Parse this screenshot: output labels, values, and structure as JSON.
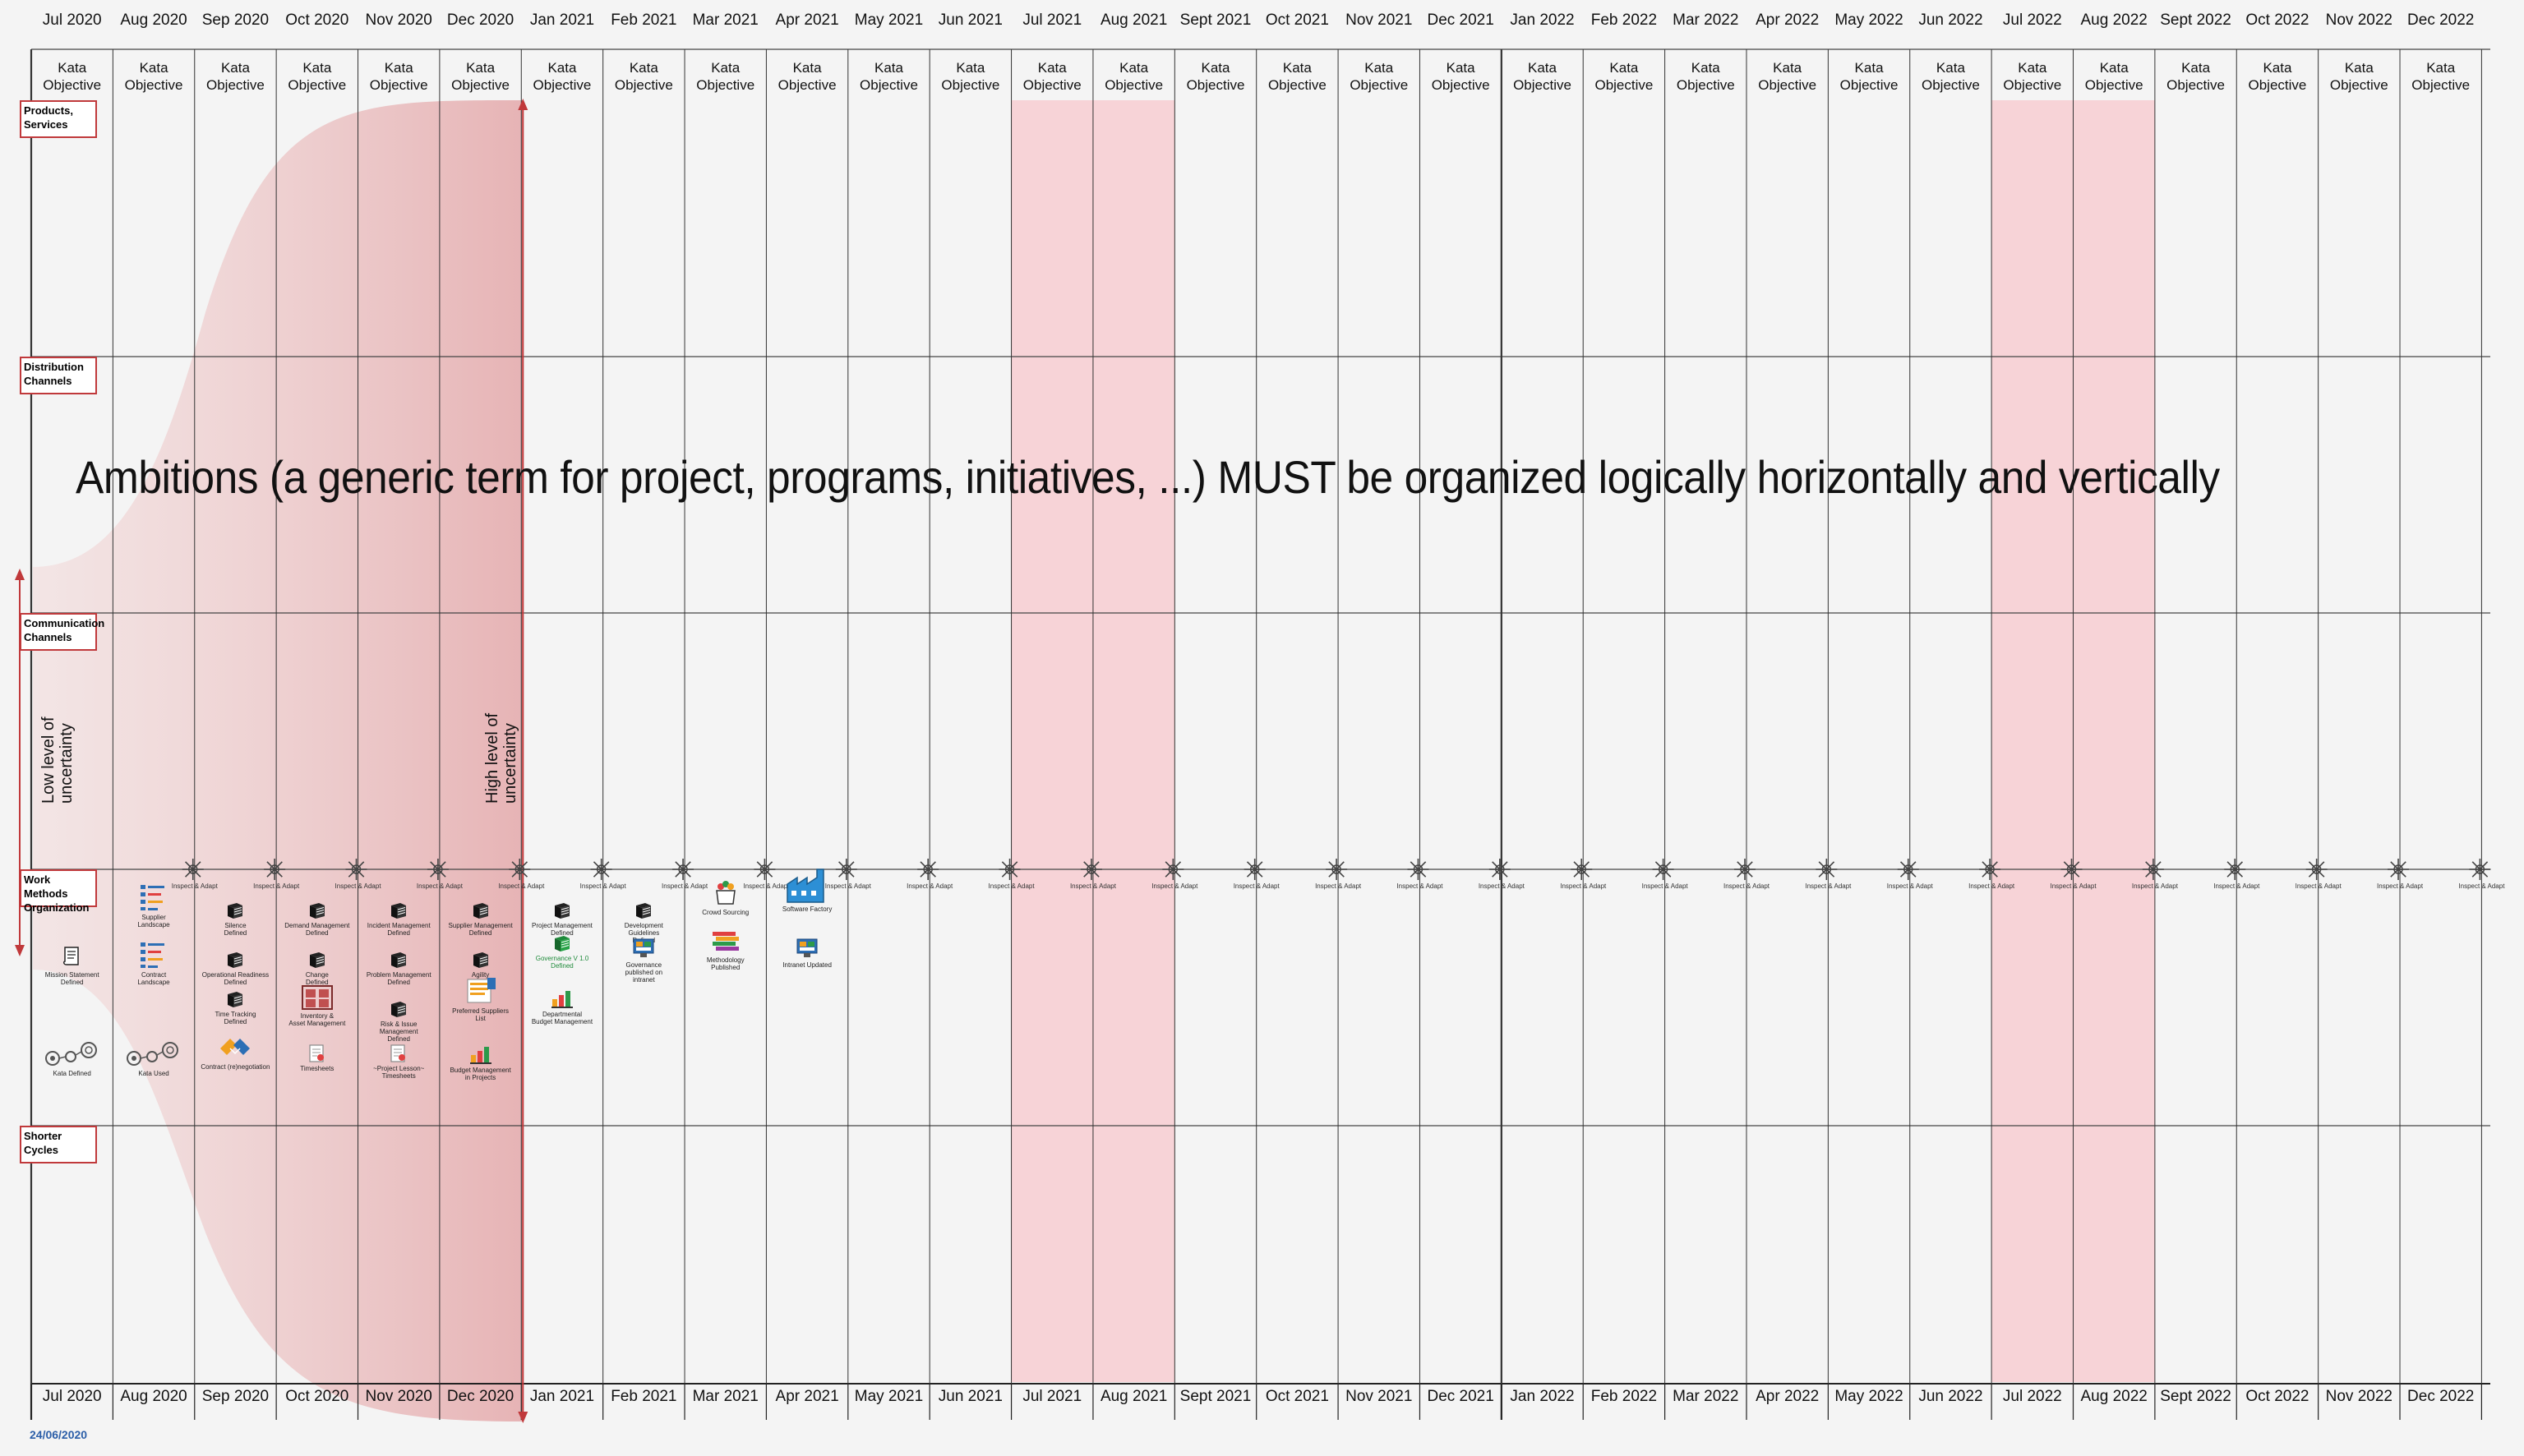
{
  "months": [
    "Jul 2020",
    "Aug 2020",
    "Sep 2020",
    "Oct 2020",
    "Nov 2020",
    "Dec 2020",
    "Jan 2021",
    "Feb 2021",
    "Mar 2021",
    "Apr 2021",
    "May 2021",
    "Jun 2021",
    "Jul 2021",
    "Aug 2021",
    "Sept 2021",
    "Oct 2021",
    "Nov 2021",
    "Dec 2021",
    "Jan 2022",
    "Feb 2022",
    "Mar 2022",
    "Apr 2022",
    "May 2022",
    "Jun 2022",
    "Jul 2022",
    "Aug 2022",
    "Sept 2022",
    "Oct 2022",
    "Nov 2022",
    "Dec 2022"
  ],
  "kata_line1": "Kata",
  "kata_line2": "Objective",
  "rows": [
    {
      "line1": "Products,",
      "line2": "Services"
    },
    {
      "line1": "Distribution",
      "line2": "Channels"
    },
    {
      "line1": "Communication",
      "line2": "Channels"
    },
    {
      "line1": "Work Methods",
      "line2": "Organization"
    },
    {
      "line1": "Shorter Cycles",
      "line2": ""
    }
  ],
  "headline": "Ambitions (a generic term for project, programs, initiatives, ...) MUST be organized logically horizontally and vertically",
  "low_uncertainty": {
    "line1": "Low level of",
    "line2": "uncertainty"
  },
  "high_uncertainty": {
    "line1": "High level of",
    "line2": "uncertainty"
  },
  "inspect_adapt": "Inspect & Adapt",
  "highlight_months": [
    "Jul 2021",
    "Aug 2021",
    "Jul 2022",
    "Aug 2022"
  ],
  "date": "24/06/2020",
  "items": [
    {
      "month": 0,
      "row": 0,
      "icon": "document-icon",
      "line1": "Mission Statement",
      "line2": "Defined",
      "line3": ""
    },
    {
      "month": 0,
      "row": 1,
      "icon": "gears-icon",
      "line1": "Kata Defined",
      "line2": "",
      "line3": ""
    },
    {
      "month": 1,
      "row": 0,
      "icon": "checklist-icon",
      "line1": "Supplier",
      "line2": "Landscape",
      "line3": ""
    },
    {
      "month": 1,
      "row": 1,
      "icon": "checklist-icon",
      "line1": "Contract",
      "line2": "Landscape",
      "line3": ""
    },
    {
      "month": 1,
      "row": 2,
      "icon": "gears-icon",
      "line1": "Kata Used",
      "line2": "",
      "line3": ""
    },
    {
      "month": 2,
      "row": 0,
      "icon": "book-icon",
      "line1": "Silence",
      "line2": "Defined",
      "line3": ""
    },
    {
      "month": 2,
      "row": 1,
      "icon": "book-icon",
      "line1": "Operational Readiness",
      "line2": "Defined",
      "line3": ""
    },
    {
      "month": 2,
      "row": 2,
      "icon": "book-icon",
      "line1": "Time Tracking",
      "line2": "Defined",
      "line3": ""
    },
    {
      "month": 2,
      "row": 3,
      "icon": "handshake-icon",
      "line1": "Contract (re)negotiation",
      "line2": "",
      "line3": ""
    },
    {
      "month": 3,
      "row": 0,
      "icon": "book-icon",
      "line1": "Demand Management",
      "line2": "Defined",
      "line3": ""
    },
    {
      "month": 3,
      "row": 1,
      "icon": "book-icon",
      "line1": "Change",
      "line2": "Defined",
      "line3": ""
    },
    {
      "month": 3,
      "row": 2,
      "icon": "warehouse-icon",
      "line1": "Inventory &",
      "line2": "Asset Management",
      "line3": ""
    },
    {
      "month": 3,
      "row": 3,
      "icon": "timesheet-icon",
      "line1": "Timesheets",
      "line2": "",
      "line3": ""
    },
    {
      "month": 4,
      "row": 0,
      "icon": "book-icon",
      "line1": "Incident Management",
      "line2": "Defined",
      "line3": ""
    },
    {
      "month": 4,
      "row": 1,
      "icon": "book-icon",
      "line1": "Problem Management",
      "line2": "Defined",
      "line3": ""
    },
    {
      "month": 4,
      "row": 2,
      "icon": "book-icon",
      "line1": "Risk & Issue Management",
      "line2": "Defined",
      "line3": ""
    },
    {
      "month": 4,
      "row": 3,
      "icon": "timesheet-icon",
      "line1": "~Project Lesson~",
      "line2": "Timesheets",
      "line3": ""
    },
    {
      "month": 5,
      "row": 0,
      "icon": "book-icon",
      "line1": "Supplier Management",
      "line2": "Defined",
      "line3": ""
    },
    {
      "month": 5,
      "row": 1,
      "icon": "book-icon",
      "line1": "Agility",
      "line2": "Defined",
      "line3": ""
    },
    {
      "month": 5,
      "row": 2,
      "icon": "list-icon",
      "line1": "Preferred Suppliers",
      "line2": "List",
      "line3": ""
    },
    {
      "month": 5,
      "row": 3,
      "icon": "budget-icon",
      "line1": "Budget Management",
      "line2": "in Projects",
      "line3": ""
    },
    {
      "month": 6,
      "row": 0,
      "icon": "book-icon",
      "line1": "Project Management",
      "line2": "Defined",
      "line3": ""
    },
    {
      "month": 6,
      "row": 1,
      "icon": "green-book-icon",
      "line1": "Governance V 1.0",
      "line2": "Defined",
      "line3": ""
    },
    {
      "month": 6,
      "row": 2,
      "icon": "budget-icon",
      "line1": "Departmental",
      "line2": "Budget Management",
      "line3": ""
    },
    {
      "month": 7,
      "row": 0,
      "icon": "book-icon",
      "line1": "Development Guidelines",
      "line2": "Defined",
      "line3": ""
    },
    {
      "month": 7,
      "row": 1,
      "icon": "intranet-icon",
      "line1": "Governance",
      "line2": "published on",
      "line3": "intranet"
    },
    {
      "month": 8,
      "row": 0,
      "icon": "crowd-icon",
      "line1": "Crowd Sourcing",
      "line2": "",
      "line3": ""
    },
    {
      "month": 8,
      "row": 1,
      "icon": "methodology-icon",
      "line1": "Methodology",
      "line2": "Published",
      "line3": ""
    },
    {
      "month": 9,
      "row": 0,
      "icon": "factory-icon",
      "line1": "Software Factory",
      "line2": "",
      "line3": ""
    },
    {
      "month": 9,
      "row": 1,
      "icon": "intranet-icon",
      "line1": "Intranet Updated",
      "line2": "",
      "line3": ""
    }
  ]
}
